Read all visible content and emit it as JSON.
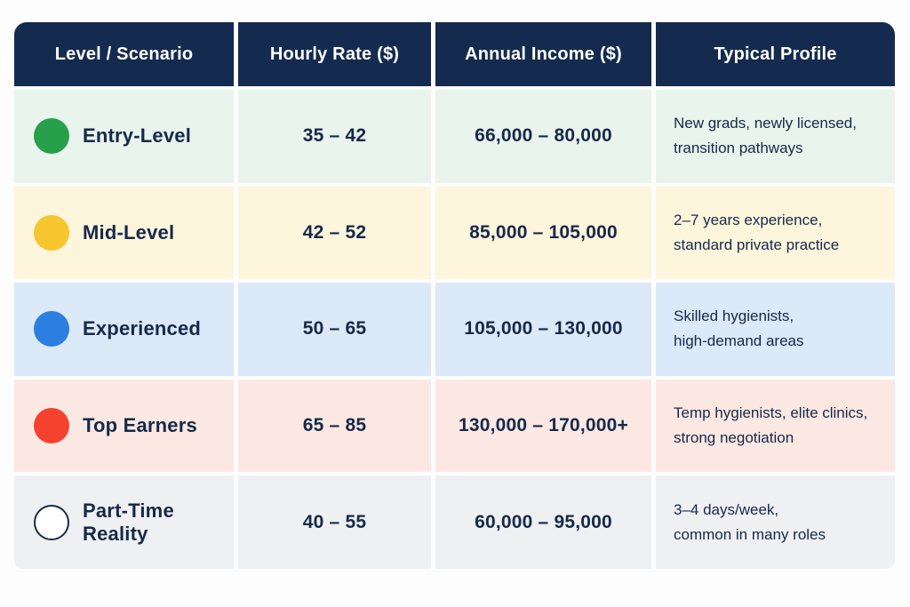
{
  "colors": {
    "header_bg": "#142a4e",
    "text_dark": "#16294a",
    "row_entry_bg": "#e9f4ec",
    "row_mid_bg": "#fdf5dc",
    "row_experienced_bg": "#dce9f8",
    "row_top_bg": "#fce8e3",
    "row_parttime_bg": "#eef0f2",
    "dot_green": "#27a04b",
    "dot_yellow": "#f7c52d",
    "dot_blue": "#2c7fe0",
    "dot_red": "#f5422f",
    "dot_white": "#ffffff"
  },
  "chart_data": {
    "type": "table",
    "title": "",
    "columns": [
      "Level / Scenario",
      "Hourly Rate ($)",
      "Annual Income ($)",
      "Typical Profile"
    ],
    "rows": [
      [
        "Entry-Level",
        "35 – 42",
        "66,000 – 80,000",
        "New grads, newly licensed, transition pathways"
      ],
      [
        "Mid-Level",
        "42 – 52",
        "85,000 – 105,000",
        "2–7 years experience, standard private practice"
      ],
      [
        "Experienced",
        "50 – 65",
        "105,000 – 130,000",
        "Skilled hygienists, high-demand areas"
      ],
      [
        "Top Earners",
        "65 – 85",
        "130,000 – 170,000+",
        "Temp hygienists, elite clinics, strong negotiation"
      ],
      [
        "Part-Time Reality",
        "40 – 55",
        "60,000 – 95,000",
        "3–4 days/week, common in many roles"
      ]
    ]
  },
  "table": {
    "headers": {
      "level": "Level / Scenario",
      "hourly": "Hourly Rate ($)",
      "annual": "Annual Income ($)",
      "profile": "Typical Profile"
    },
    "rows": [
      {
        "level": "Entry-Level",
        "hourly_rate": "35 – 42",
        "annual_income": "66,000 – 80,000",
        "profile_line1": "New grads, newly licensed,",
        "profile_line2": "transition pathways",
        "row_bg": "#e9f4ec",
        "dot_color": "#27a04b",
        "dot_class": ""
      },
      {
        "level": "Mid-Level",
        "hourly_rate": "42 – 52",
        "annual_income": "85,000 – 105,000",
        "profile_line1": "2–7 years experience,",
        "profile_line2": "standard private practice",
        "row_bg": "#fdf5dc",
        "dot_color": "#f7c52d",
        "dot_class": ""
      },
      {
        "level": "Experienced",
        "hourly_rate": "50 – 65",
        "annual_income": "105,000 – 130,000",
        "profile_line1": "Skilled hygienists,",
        "profile_line2": "high-demand areas",
        "row_bg": "#dce9f8",
        "dot_color": "#2c7fe0",
        "dot_class": ""
      },
      {
        "level": "Top Earners",
        "hourly_rate": "65 – 85",
        "annual_income": "130,000 – 170,000+",
        "profile_line1": "Temp hygienists, elite clinics,",
        "profile_line2": "strong negotiation",
        "row_bg": "#fce8e3",
        "dot_color": "#f5422f",
        "dot_class": ""
      },
      {
        "level": "Part-Time Reality",
        "hourly_rate": "40 – 55",
        "annual_income": "60,000 – 95,000",
        "profile_line1": "3–4 days/week,",
        "profile_line2": "common in many roles",
        "row_bg": "#eef0f2",
        "dot_color": "#ffffff",
        "dot_class": "outline"
      }
    ]
  }
}
